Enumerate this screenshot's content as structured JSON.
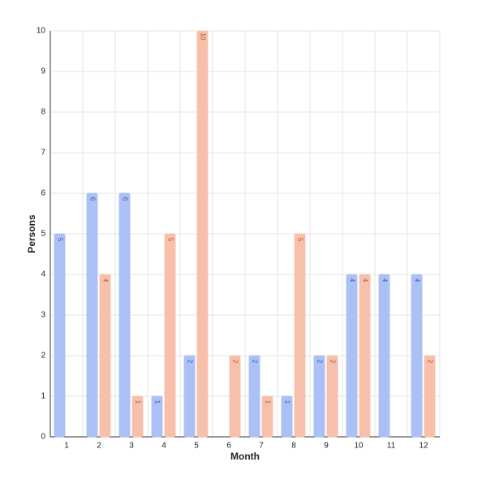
{
  "chart_data": {
    "type": "bar",
    "x_label": "Month",
    "y_label": "Persons",
    "categories": [
      "1",
      "2",
      "3",
      "4",
      "5",
      "6",
      "7",
      "8",
      "9",
      "10",
      "11",
      "12"
    ],
    "series": [
      {
        "color": "#abc0f5",
        "values": [
          5,
          6,
          6,
          1,
          2,
          null,
          2,
          1,
          2,
          4,
          4,
          4
        ]
      },
      {
        "color": "#f7c0aa",
        "values": [
          null,
          4,
          1,
          5,
          10,
          2,
          1,
          5,
          2,
          4,
          null,
          2
        ]
      }
    ],
    "ylim": [
      0,
      10
    ],
    "yticks": [
      0,
      1,
      2,
      3,
      4,
      5,
      6,
      7,
      8,
      9,
      10
    ],
    "grid": true
  }
}
